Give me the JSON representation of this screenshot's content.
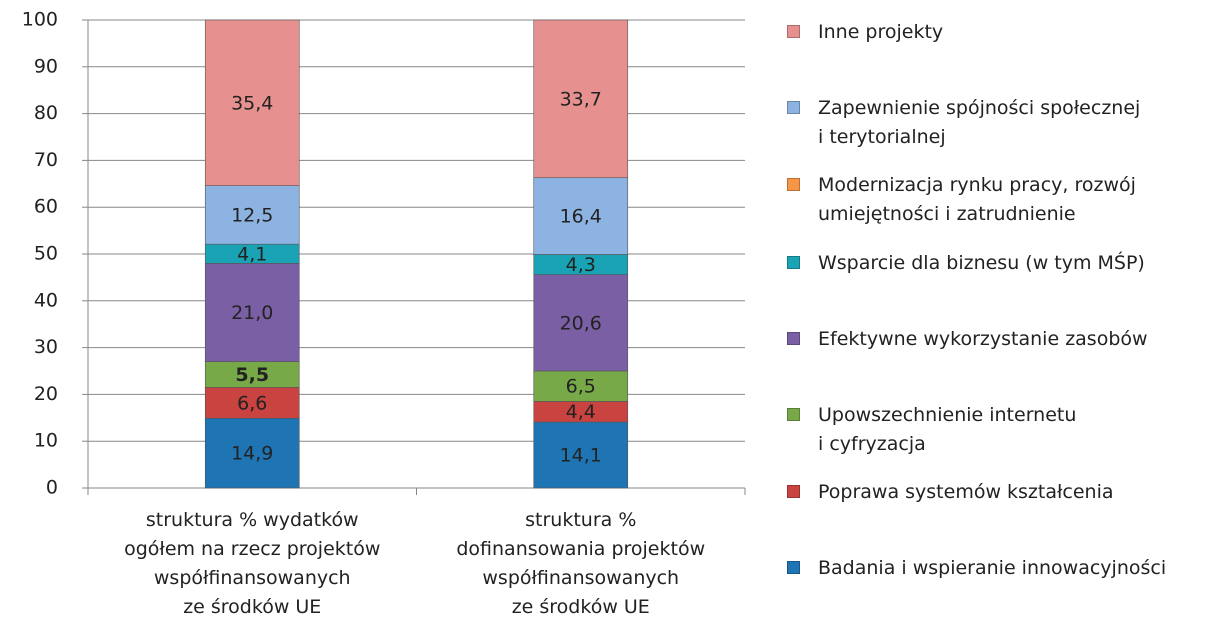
{
  "chart_data": {
    "type": "stacked_bar",
    "categories": [
      "struktura % wydatków\nogółem na rzecz projektów\nwspółfinansowanych\nze środków UE",
      "struktura %\ndofinansowania projektów\nwspółfinansowanych\nze środków UE"
    ],
    "series": [
      {
        "name": "Badania i wspieranie innowacyjności",
        "color": "#1f74b4",
        "values": [
          14.9,
          14.1
        ],
        "value_labels": [
          "14,9",
          "14,1"
        ]
      },
      {
        "name": "Poprawa systemów kształcenia",
        "color": "#c94340",
        "values": [
          6.6,
          4.4
        ],
        "value_labels": [
          "6,6",
          "4,4"
        ]
      },
      {
        "name": "Upowszechnienie internetu\ni cyfryzacja",
        "color": "#77a948",
        "values": [
          5.5,
          6.5
        ],
        "value_labels": [
          "5,5",
          "6,5"
        ],
        "bold_value_labels": [
          true,
          false
        ]
      },
      {
        "name": "Efektywne wykorzystanie zasobów",
        "color": "#7b5fa5",
        "values": [
          21.0,
          20.6
        ],
        "value_labels": [
          "21,0",
          "20,6"
        ]
      },
      {
        "name": "Wsparcie dla biznesu (w tym MŚP)",
        "color": "#1aa3b5",
        "values": [
          4.1,
          4.3
        ],
        "value_labels": [
          "4,1",
          "4,3"
        ]
      },
      {
        "name": "Modernizacja rynku pracy, rozwój\numiejętności i zatrudnienie",
        "color": "#f79646",
        "values": [
          0,
          0
        ]
      },
      {
        "name": "Zapewnienie spójności społecznej\ni terytorialnej",
        "color": "#8db3e2",
        "values": [
          12.5,
          16.4
        ],
        "value_labels": [
          "12,5",
          "16,4"
        ]
      },
      {
        "name": "Inne projekty",
        "color": "#e69190",
        "values": [
          35.4,
          33.7
        ],
        "value_labels": [
          "35,4",
          "33,7"
        ]
      }
    ],
    "ylim": [
      0,
      100
    ],
    "yticks": [
      0,
      10,
      20,
      30,
      40,
      50,
      60,
      70,
      80,
      90,
      100
    ],
    "grid": true,
    "legend": "right"
  }
}
